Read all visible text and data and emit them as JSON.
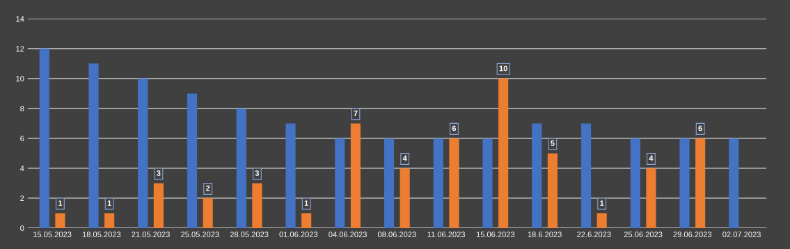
{
  "chart_data": {
    "type": "bar",
    "categories": [
      "15.05.2023",
      "18.05.2023",
      "21.05.2023",
      "25.05.2023",
      "28.05.2023",
      "01.06.2023",
      "04.06.2023",
      "08.06.2023",
      "11.06.2023",
      "15.06.2023",
      "18.6.2023",
      "22.6.2023",
      "25.06.2023",
      "29.06.2023",
      "02.07.2023"
    ],
    "series": [
      {
        "color": "#4472c4",
        "values": [
          12,
          11,
          10,
          9,
          8,
          7,
          6,
          6,
          6,
          6,
          7,
          7,
          6,
          6,
          6
        ]
      },
      {
        "color": "#ed7d31",
        "values": [
          1,
          1,
          3,
          2,
          3,
          1,
          7,
          4,
          6,
          10,
          5,
          1,
          4,
          6,
          null
        ],
        "value_labels": [
          "1",
          "1",
          "3",
          "2",
          "3",
          "1",
          "7",
          "4",
          "6",
          "10",
          "5",
          "1",
          "4",
          "6",
          null
        ]
      }
    ],
    "ylim": [
      0,
      14
    ],
    "yticks": [
      0,
      2,
      4,
      6,
      8,
      10,
      12,
      14
    ],
    "grid": "y",
    "legend": false
  }
}
